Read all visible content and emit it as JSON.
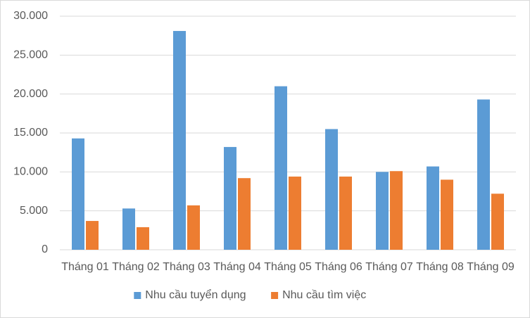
{
  "chart_data": {
    "type": "bar",
    "categories": [
      "Tháng 01",
      "Tháng 02",
      "Tháng 03",
      "Tháng 04",
      "Tháng 05",
      "Tháng 06",
      "Tháng 07",
      "Tháng 08",
      "Tháng 09"
    ],
    "series": [
      {
        "name": "Nhu cầu tuyển dụng",
        "color": "#5b9bd5",
        "values": [
          14300,
          5300,
          28100,
          13200,
          21000,
          15500,
          10000,
          10700,
          19300
        ]
      },
      {
        "name": "Nhu cầu tìm việc",
        "color": "#ed7d31",
        "values": [
          3700,
          2900,
          5700,
          9200,
          9400,
          9400,
          10100,
          9000,
          7200
        ]
      }
    ],
    "ylim": [
      0,
      30000
    ],
    "yticks": [
      0,
      {
        "value": 5000,
        "label": "5.000"
      },
      {
        "value": 10000,
        "label": "10.000"
      },
      {
        "value": 15000,
        "label": "15.000"
      },
      {
        "value": 20000,
        "label": "20.000"
      },
      {
        "value": 25000,
        "label": "25.000"
      },
      {
        "value": 30000,
        "label": "30.000"
      }
    ],
    "grid": true,
    "legend": "bottom"
  }
}
